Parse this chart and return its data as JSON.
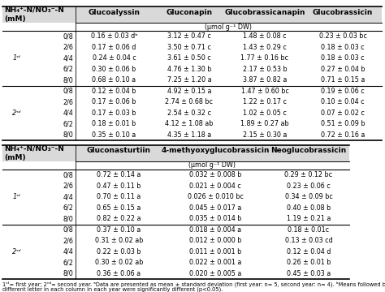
{
  "top_section": {
    "col_headers": [
      "NH₄⁺-N/NO₃⁻-N\n(mM)",
      "Glucoalyssin",
      "Gluconapin",
      "Glucobrassicanapin",
      "Glucobrassicin"
    ],
    "sub_header": "(μmol g⁻¹ DW)",
    "year_labels": [
      "1ˢᵗ",
      "2ⁿᵈ"
    ],
    "rows": [
      [
        "0/8",
        "0.16 ± 0.03 dᵇ",
        "3.12 ± 0.47 c",
        "1.48 ± 0.08 c",
        "0.23 ± 0.03 bc"
      ],
      [
        "2/6",
        "0.17 ± 0.06 d",
        "3.50 ± 0.71 c",
        "1.43 ± 0.29 c",
        "0.18 ± 0.03 c"
      ],
      [
        "4/4",
        "0.24 ± 0.04 c",
        "3.61 ± 0.50 c",
        "1.77 ± 0.16 bc",
        "0.18 ± 0.03 c"
      ],
      [
        "6/2",
        "0.30 ± 0.06 b",
        "4.76 ± 1.30 b",
        "2.17 ± 0.53 b",
        "0.27 ± 0.04 b"
      ],
      [
        "8/0",
        "0.68 ± 0.10 a",
        "7.25 ± 1.20 a",
        "3.87 ± 0.82 a",
        "0.71 ± 0.15 a"
      ],
      [
        "0/8",
        "0.12 ± 0.04 b",
        "4.92 ± 0.15 a",
        "1.47 ± 0.60 bc",
        "0.19 ± 0.06 c"
      ],
      [
        "2/6",
        "0.17 ± 0.06 b",
        "2.74 ± 0.68 bc",
        "1.22 ± 0.17 c",
        "0.10 ± 0.04 c"
      ],
      [
        "4/4",
        "0.17 ± 0.03 b",
        "2.54 ± 0.32 c",
        "1.02 ± 0.05 c",
        "0.07 ± 0.02 c"
      ],
      [
        "6/2",
        "0.18 ± 0.01 b",
        "4.12 ± 1.08 ab",
        "1.89 ± 0.27 ab",
        "0.51 ± 0.09 b"
      ],
      [
        "8/0",
        "0.35 ± 0.10 a",
        "4.35 ± 1.18 a",
        "2.15 ± 0.30 a",
        "0.72 ± 0.16 a"
      ]
    ]
  },
  "bottom_section": {
    "col_headers": [
      "NH₄⁺-N/NO₃⁻-N\n(mM)",
      "Gluconasturtiin",
      "4-methyoxyglucobrassicin",
      "Neoglucobrassicin"
    ],
    "sub_header": "(μmol g⁻¹ DW)",
    "year_labels": [
      "1ˢᵗ",
      "2ⁿᵈ"
    ],
    "rows": [
      [
        "0/8",
        "0.72 ± 0.14 a",
        "0.032 ± 0.008 b",
        "0.29 ± 0.12 bc"
      ],
      [
        "2/6",
        "0.47 ± 0.11 b",
        "0.021 ± 0.004 c",
        "0.23 ± 0.06 c"
      ],
      [
        "4/4",
        "0.70 ± 0.11 a",
        "0.026 ± 0.010 bc",
        "0.34 ± 0.09 bc"
      ],
      [
        "6/2",
        "0.65 ± 0.15 a",
        "0.045 ± 0.017 a",
        "0.40 ± 0.08 b"
      ],
      [
        "8/0",
        "0.82 ± 0.22 a",
        "0.035 ± 0.014 b",
        "1.19 ± 0.21 a"
      ],
      [
        "0/8",
        "0.37 ± 0.10 a",
        "0.018 ± 0.004 a",
        "0.18 ± 0.01c"
      ],
      [
        "2/6",
        "0.31 ± 0.02 ab",
        "0.012 ± 0.000 b",
        "0.13 ± 0.03 cd"
      ],
      [
        "4/4",
        "0.22 ± 0.03 b",
        "0.011 ± 0.001 b",
        "0.12 ± 0.04 d"
      ],
      [
        "6/2",
        "0.30 ± 0.02 ab",
        "0.022 ± 0.001 a",
        "0.26 ± 0.01 b"
      ],
      [
        "8/0",
        "0.36 ± 0.06 a",
        "0.020 ± 0.005 a",
        "0.45 ± 0.03 a"
      ]
    ]
  },
  "footnote1": "1ˢᵗ= first year; 2ⁿᵈ= second year. ᵃData are presented as mean ± standard deviation (first year: n= 5, second year: n= 4). ᵇMeans followed by",
  "footnote2": "different letter in each column in each year were significantly different (p<0.05).",
  "bg_color": "#ffffff",
  "header_bg": "#d9d9d9",
  "line_color": "#000000",
  "font_size": 5.8,
  "header_font_size": 6.5
}
